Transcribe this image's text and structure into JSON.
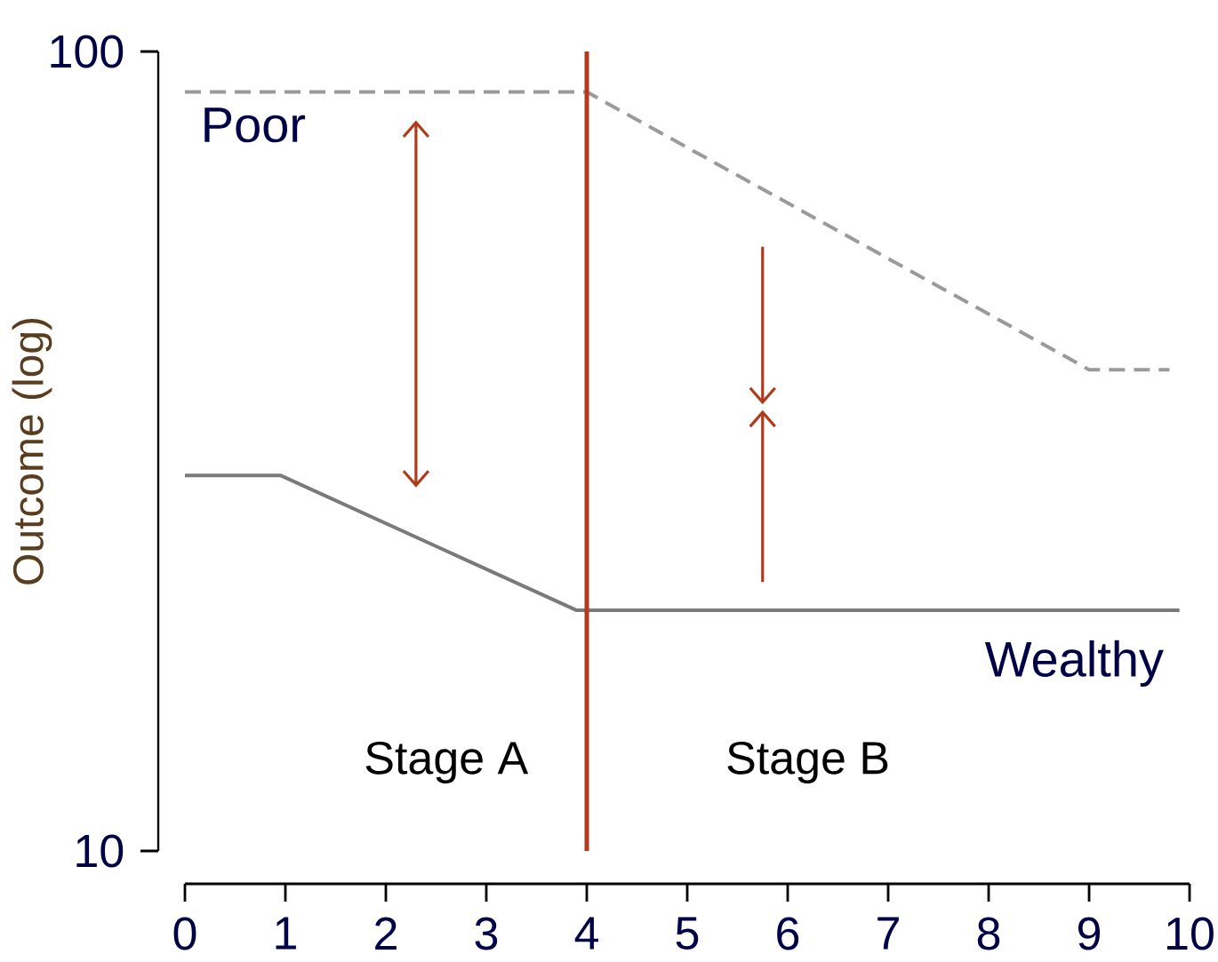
{
  "chart_data": {
    "type": "line",
    "ylabel": "Outcome (log)",
    "log": true,
    "xlim": [
      0,
      10
    ],
    "ylim": [
      10,
      100
    ],
    "xticks": [
      0,
      1,
      2,
      3,
      4,
      5,
      6,
      7,
      8,
      9,
      10
    ],
    "yticks": [
      10,
      100
    ],
    "marker": "none",
    "series": [
      {
        "name": "Poor",
        "color": "#9a9a9a",
        "line_style": "dashed",
        "x": [
          0,
          4,
          9,
          9.8
        ],
        "values": [
          89,
          89,
          40,
          40
        ]
      },
      {
        "name": "Wealthy",
        "color": "#7a7a7a",
        "line_style": "solid",
        "x": [
          0,
          0.95,
          3.9,
          9.9
        ],
        "values": [
          29.5,
          29.5,
          20,
          20
        ]
      }
    ],
    "ref_lines": [
      {
        "axis": "x",
        "value": 4,
        "color": "#b5391a"
      }
    ],
    "annotations": [
      "Stage A",
      "Stage B"
    ]
  }
}
